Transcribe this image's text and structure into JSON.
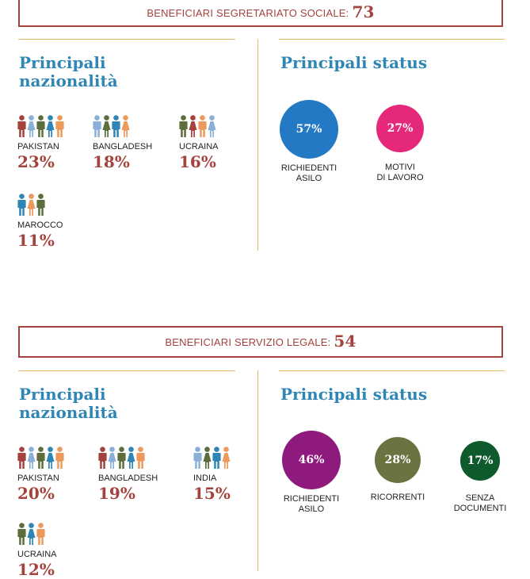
{
  "sections": [
    {
      "banner_label": "BENEFICIARI SEGRETARIATO SOCIALE:",
      "banner_count": "73",
      "nat_heading": "Principali\nnazionalità",
      "status_heading": "Principali status",
      "nationalities": [
        {
          "name": "PAKISTAN",
          "pct": "23%",
          "figures": [
            "#a4423d",
            "#8ab0d8",
            "#5d6e3c",
            "#2f86b5",
            "#eb9a5c"
          ]
        },
        {
          "name": "BANGLADESH",
          "pct": "18%",
          "figures": [
            "#8ab0d8",
            "#5d6e3c",
            "#2f86b5",
            "#eb9a5c"
          ]
        },
        {
          "name": "UCRAINA",
          "pct": "16%",
          "figures": [
            "#5d6e3c",
            "#a4423d",
            "#eb9a5c",
            "#8ab0d8"
          ]
        },
        {
          "name": "MAROCCO",
          "pct": "11%",
          "figures": [
            "#2f86b5",
            "#eb9a5c",
            "#5d6e3c"
          ]
        }
      ],
      "statuses": [
        {
          "label": "RICHIEDENTI\nASILO",
          "pct": "57%",
          "color": "#2479c4"
        },
        {
          "label": "MOTIVI\nDI LAVORO",
          "pct": "27%",
          "color": "#e5287a"
        }
      ]
    },
    {
      "banner_label": "BENEFICIARI SERVIZIO LEGALE:",
      "banner_count": "54",
      "nat_heading": "Principali\nnazionalità",
      "status_heading": "Principali status",
      "nationalities": [
        {
          "name": "PAKISTAN",
          "pct": "20%",
          "figures": [
            "#a4423d",
            "#8ab0d8",
            "#5d6e3c",
            "#2f86b5",
            "#eb9a5c"
          ]
        },
        {
          "name": "BANGLADESH",
          "pct": "19%",
          "figures": [
            "#a4423d",
            "#8ab0d8",
            "#5d6e3c",
            "#2f86b5",
            "#eb9a5c"
          ]
        },
        {
          "name": "INDIA",
          "pct": "15%",
          "figures": [
            "#8ab0d8",
            "#5d6e3c",
            "#2f86b5",
            "#eb9a5c"
          ]
        },
        {
          "name": "UCRAINA",
          "pct": "12%",
          "figures": [
            "#5d6e3c",
            "#2f86b5",
            "#eb9a5c"
          ]
        }
      ],
      "statuses": [
        {
          "label": "RICHIEDENTI\nASILO",
          "pct": "46%",
          "color": "#8e1a7e"
        },
        {
          "label": "RICORRENTI",
          "pct": "28%",
          "color": "#6b7440"
        },
        {
          "label": "SENZA\nDOCUMENTI",
          "pct": "17%",
          "color": "#0e5a2c"
        }
      ]
    }
  ]
}
